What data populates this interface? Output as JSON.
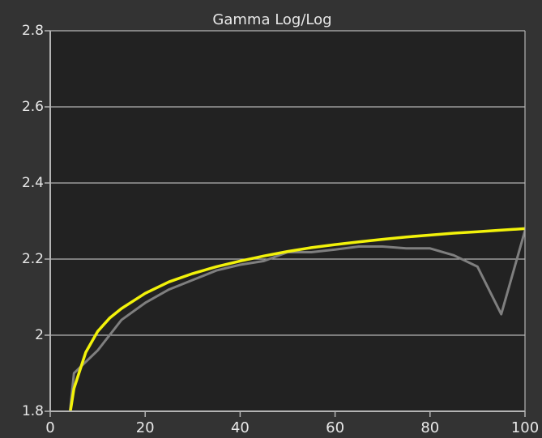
{
  "chart_data": {
    "type": "line",
    "title": "Gamma Log/Log",
    "xlabel": "",
    "ylabel": "",
    "xlim": [
      0,
      100
    ],
    "ylim": [
      1.8,
      2.8
    ],
    "x_ticks": [
      0,
      20,
      40,
      60,
      80,
      100
    ],
    "x_tick_labels": [
      "0",
      "20",
      "40",
      "60",
      "80",
      "100"
    ],
    "y_ticks": [
      1.8,
      2.0,
      2.2,
      2.4,
      2.6,
      2.8
    ],
    "y_tick_labels": [
      "1.8",
      "2",
      "2.2",
      "2.4",
      "2.6",
      "2.8"
    ],
    "grid": "horizontal",
    "background_color": "#333333",
    "plot_background_color": "#222222",
    "grid_color": "#b4b4b4",
    "series": [
      {
        "color": "#7f7f7f",
        "x": [
          4,
          5,
          10,
          15,
          20,
          25,
          30,
          35,
          40,
          45,
          50,
          55,
          60,
          65,
          70,
          75,
          80,
          85,
          90,
          95,
          100
        ],
        "y": [
          1.78,
          1.9,
          1.96,
          2.04,
          2.085,
          2.12,
          2.145,
          2.17,
          2.185,
          2.195,
          2.218,
          2.218,
          2.225,
          2.233,
          2.233,
          2.228,
          2.228,
          2.21,
          2.18,
          2.055,
          2.275
        ]
      },
      {
        "color": "#f2f20a",
        "x": [
          4,
          5,
          7.5,
          10,
          12.5,
          15,
          17.5,
          20,
          25,
          30,
          35,
          40,
          45,
          50,
          55,
          60,
          65,
          70,
          75,
          80,
          85,
          90,
          95,
          100
        ],
        "y": [
          1.78,
          1.86,
          1.955,
          2.01,
          2.045,
          2.07,
          2.09,
          2.11,
          2.14,
          2.162,
          2.18,
          2.195,
          2.208,
          2.22,
          2.23,
          2.238,
          2.245,
          2.252,
          2.258,
          2.263,
          2.268,
          2.272,
          2.276,
          2.28
        ]
      }
    ]
  }
}
